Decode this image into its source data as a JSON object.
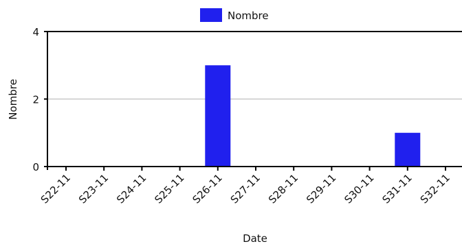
{
  "chart_data": {
    "type": "bar",
    "categories": [
      "S22-11",
      "S23-11",
      "S24-11",
      "S25-11",
      "S26-11",
      "S27-11",
      "S28-11",
      "S29-11",
      "S30-11",
      "S31-11",
      "S32-11"
    ],
    "series": [
      {
        "name": "Nombre",
        "values": [
          0,
          0,
          0,
          0,
          3,
          0,
          0,
          0,
          0,
          1,
          0
        ]
      }
    ],
    "xlabel": "Date",
    "ylabel": "Nombre",
    "ylim": [
      0,
      4
    ],
    "yticks": [
      0,
      2,
      4
    ],
    "legend_position": "top-center",
    "grid": true,
    "colors": {
      "bar": "#2020ee",
      "grid": "#c8c8c8",
      "axis": "#000000"
    }
  }
}
